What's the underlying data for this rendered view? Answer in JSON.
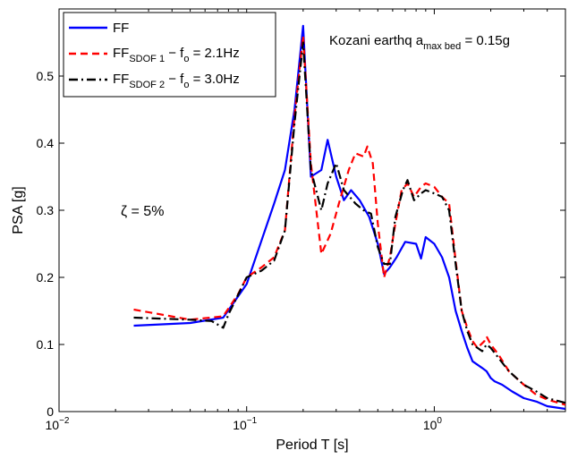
{
  "chart_data": {
    "type": "line",
    "xscale": "log",
    "xlim": [
      0.01,
      5
    ],
    "ylim": [
      0,
      0.6
    ],
    "xlabel": "Period T [s]",
    "ylabel": "PSA [g]",
    "grid": false,
    "legend_position": "top-left",
    "xticks": [
      {
        "value": 0.01,
        "base": "10",
        "exp": "−2"
      },
      {
        "value": 0.1,
        "base": "10",
        "exp": "−1"
      },
      {
        "value": 1,
        "base": "10",
        "exp": "0"
      }
    ],
    "yticks": [
      {
        "value": 0,
        "label": "0"
      },
      {
        "value": 0.1,
        "label": "0.1"
      },
      {
        "value": 0.2,
        "label": "0.2"
      },
      {
        "value": 0.3,
        "label": "0.3"
      },
      {
        "value": 0.4,
        "label": "0.4"
      },
      {
        "value": 0.5,
        "label": "0.5"
      }
    ],
    "annotations": {
      "title_main": "Kozani earthq a",
      "title_sub": "max bed",
      "title_tail": " = 0.15g",
      "damping": "ζ = 5%"
    },
    "series": [
      {
        "legend_main": "FF",
        "legend_sub": "",
        "legend_tail": "",
        "color": "#0000ff",
        "dash": "solid",
        "points": [
          [
            0.025,
            0.128
          ],
          [
            0.05,
            0.132
          ],
          [
            0.075,
            0.14
          ],
          [
            0.1,
            0.19
          ],
          [
            0.12,
            0.255
          ],
          [
            0.14,
            0.31
          ],
          [
            0.16,
            0.36
          ],
          [
            0.18,
            0.45
          ],
          [
            0.2,
            0.575
          ],
          [
            0.22,
            0.35
          ],
          [
            0.25,
            0.36
          ],
          [
            0.27,
            0.405
          ],
          [
            0.3,
            0.35
          ],
          [
            0.33,
            0.315
          ],
          [
            0.36,
            0.33
          ],
          [
            0.4,
            0.315
          ],
          [
            0.45,
            0.29
          ],
          [
            0.5,
            0.25
          ],
          [
            0.54,
            0.205
          ],
          [
            0.58,
            0.215
          ],
          [
            0.63,
            0.23
          ],
          [
            0.7,
            0.253
          ],
          [
            0.8,
            0.25
          ],
          [
            0.85,
            0.228
          ],
          [
            0.9,
            0.26
          ],
          [
            1.0,
            0.25
          ],
          [
            1.1,
            0.23
          ],
          [
            1.2,
            0.2
          ],
          [
            1.3,
            0.15
          ],
          [
            1.4,
            0.12
          ],
          [
            1.5,
            0.095
          ],
          [
            1.6,
            0.075
          ],
          [
            1.8,
            0.065
          ],
          [
            1.9,
            0.06
          ],
          [
            2.0,
            0.05
          ],
          [
            2.1,
            0.045
          ],
          [
            2.3,
            0.04
          ],
          [
            2.6,
            0.03
          ],
          [
            3.0,
            0.02
          ],
          [
            3.5,
            0.015
          ],
          [
            4.0,
            0.008
          ],
          [
            5.0,
            0.004
          ]
        ]
      },
      {
        "legend_main": "FF",
        "legend_sub": "SDOF 1",
        "legend_tail": " − f",
        "legend_sub2": "o",
        "legend_end": " = 2.1Hz",
        "color": "#ff0000",
        "dash": "8,5",
        "points": [
          [
            0.025,
            0.152
          ],
          [
            0.05,
            0.137
          ],
          [
            0.075,
            0.142
          ],
          [
            0.09,
            0.175
          ],
          [
            0.1,
            0.2
          ],
          [
            0.12,
            0.215
          ],
          [
            0.14,
            0.23
          ],
          [
            0.16,
            0.27
          ],
          [
            0.18,
            0.44
          ],
          [
            0.2,
            0.56
          ],
          [
            0.22,
            0.37
          ],
          [
            0.25,
            0.235
          ],
          [
            0.28,
            0.265
          ],
          [
            0.31,
            0.31
          ],
          [
            0.35,
            0.36
          ],
          [
            0.38,
            0.385
          ],
          [
            0.42,
            0.38
          ],
          [
            0.44,
            0.395
          ],
          [
            0.47,
            0.37
          ],
          [
            0.5,
            0.28
          ],
          [
            0.54,
            0.2
          ],
          [
            0.58,
            0.23
          ],
          [
            0.62,
            0.28
          ],
          [
            0.67,
            0.33
          ],
          [
            0.72,
            0.34
          ],
          [
            0.78,
            0.32
          ],
          [
            0.85,
            0.335
          ],
          [
            0.9,
            0.34
          ],
          [
            1.0,
            0.335
          ],
          [
            1.1,
            0.32
          ],
          [
            1.2,
            0.31
          ],
          [
            1.3,
            0.225
          ],
          [
            1.4,
            0.15
          ],
          [
            1.5,
            0.125
          ],
          [
            1.6,
            0.105
          ],
          [
            1.7,
            0.095
          ],
          [
            1.85,
            0.105
          ],
          [
            1.9,
            0.112
          ],
          [
            2.0,
            0.1
          ],
          [
            2.2,
            0.085
          ],
          [
            2.5,
            0.06
          ],
          [
            3.0,
            0.04
          ],
          [
            3.5,
            0.025
          ],
          [
            4.0,
            0.018
          ],
          [
            5.0,
            0.01
          ]
        ]
      },
      {
        "legend_main": "FF",
        "legend_sub": "SDOF 2",
        "legend_tail": " − f",
        "legend_sub2": "o",
        "legend_end": " = 3.0Hz",
        "color": "#000000",
        "dash": "10,4,2,4",
        "points": [
          [
            0.025,
            0.14
          ],
          [
            0.05,
            0.137
          ],
          [
            0.065,
            0.135
          ],
          [
            0.075,
            0.125
          ],
          [
            0.08,
            0.145
          ],
          [
            0.1,
            0.2
          ],
          [
            0.12,
            0.21
          ],
          [
            0.14,
            0.225
          ],
          [
            0.16,
            0.27
          ],
          [
            0.18,
            0.43
          ],
          [
            0.2,
            0.55
          ],
          [
            0.22,
            0.36
          ],
          [
            0.25,
            0.3
          ],
          [
            0.27,
            0.34
          ],
          [
            0.3,
            0.37
          ],
          [
            0.33,
            0.33
          ],
          [
            0.38,
            0.31
          ],
          [
            0.42,
            0.3
          ],
          [
            0.46,
            0.295
          ],
          [
            0.5,
            0.245
          ],
          [
            0.54,
            0.22
          ],
          [
            0.58,
            0.22
          ],
          [
            0.62,
            0.29
          ],
          [
            0.68,
            0.33
          ],
          [
            0.72,
            0.345
          ],
          [
            0.78,
            0.315
          ],
          [
            0.85,
            0.325
          ],
          [
            0.9,
            0.33
          ],
          [
            1.0,
            0.325
          ],
          [
            1.1,
            0.32
          ],
          [
            1.2,
            0.3
          ],
          [
            1.3,
            0.22
          ],
          [
            1.4,
            0.15
          ],
          [
            1.5,
            0.12
          ],
          [
            1.6,
            0.1
          ],
          [
            1.8,
            0.09
          ],
          [
            1.9,
            0.1
          ],
          [
            2.0,
            0.095
          ],
          [
            2.2,
            0.08
          ],
          [
            2.5,
            0.06
          ],
          [
            3.0,
            0.04
          ],
          [
            3.5,
            0.03
          ],
          [
            4.0,
            0.02
          ],
          [
            5.0,
            0.013
          ]
        ]
      }
    ]
  }
}
